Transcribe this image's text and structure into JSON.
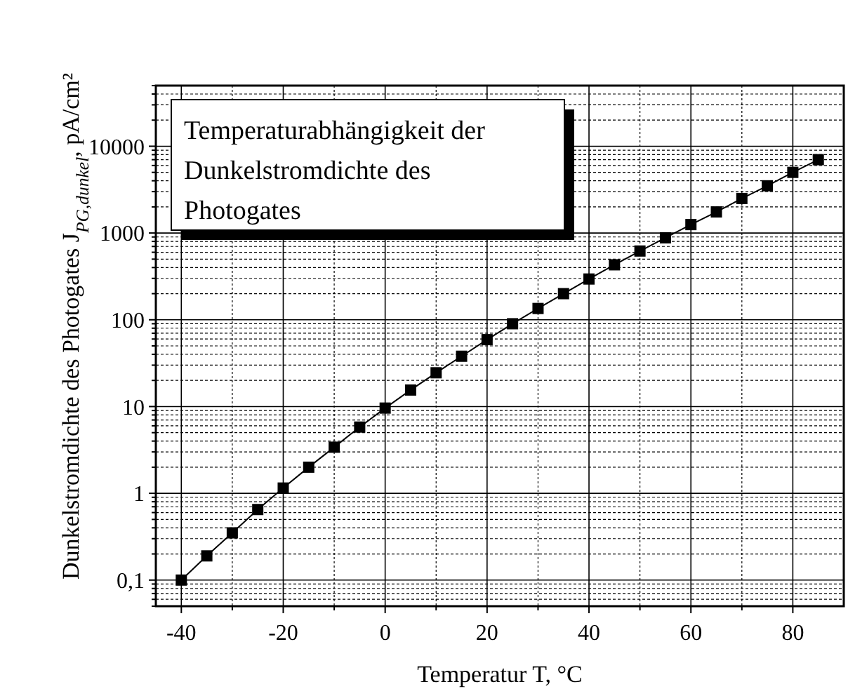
{
  "chart_data": {
    "type": "line",
    "title": "Temperaturabhängigkeit der Dunkelstromdichte des Photogates",
    "xlabel": "Temperatur T, °C",
    "ylabel": "Dunkelstromdichte des Photogates J$_{PG,dunkel}$, pA/cm²",
    "x": [
      -40,
      -35,
      -30,
      -25,
      -20,
      -15,
      -10,
      -5,
      0,
      5,
      10,
      15,
      20,
      25,
      30,
      35,
      40,
      45,
      50,
      55,
      60,
      65,
      70,
      75,
      80,
      85
    ],
    "series": [
      {
        "color": "#000000",
        "values": [
          0.1,
          0.19,
          0.35,
          0.65,
          1.15,
          2.0,
          3.4,
          5.8,
          9.6,
          15.5,
          24.5,
          38,
          59,
          90,
          135,
          200,
          295,
          430,
          620,
          880,
          1250,
          1750,
          2500,
          3500,
          5000,
          7000
        ]
      }
    ],
    "xlim": [
      -45,
      90
    ],
    "xticks": [
      -40,
      -20,
      0,
      20,
      40,
      60,
      80
    ],
    "ylim": [
      0.05,
      50000
    ],
    "yticks": [
      {
        "value": 0.1,
        "label": "0,1"
      },
      1,
      10,
      100,
      1000,
      10000
    ],
    "log": "y",
    "grid": true,
    "marker": "square",
    "line_style": "solid"
  }
}
